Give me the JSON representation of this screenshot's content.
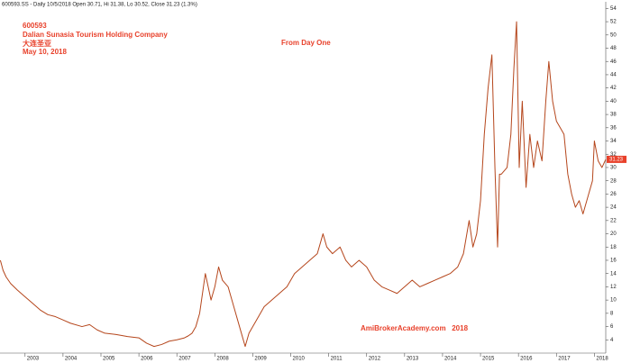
{
  "chart_data": {
    "type": "line",
    "title": "600593.SS - Daily 10/5/2018 Open 30.71, Hi 31.38, Lo 30.52, Close 31.23 (1.3%)",
    "annotations": [
      "600593",
      "Dalian Sunasia Tourism Holding Company",
      "大连圣亚",
      "May 10, 2018",
      "From Day One",
      "AmiBrokerAcademy.com   2018"
    ],
    "color": "#b5461c",
    "x": [
      2002.35,
      2002.42,
      2002.5,
      2002.62,
      2002.8,
      2003.0,
      2003.2,
      2003.4,
      2003.6,
      2003.8,
      2004.0,
      2004.2,
      2004.5,
      2004.7,
      2004.9,
      2005.1,
      2005.4,
      2005.7,
      2006.0,
      2006.2,
      2006.4,
      2006.6,
      2006.8,
      2007.0,
      2007.2,
      2007.3,
      2007.4,
      2007.5,
      2007.6,
      2007.75,
      2007.9,
      2008.0,
      2008.1,
      2008.2,
      2008.35,
      2008.5,
      2008.65,
      2008.8,
      2008.9,
      2009.1,
      2009.3,
      2009.5,
      2009.7,
      2009.9,
      2010.1,
      2010.3,
      2010.5,
      2010.7,
      2010.85,
      2010.95,
      2011.1,
      2011.3,
      2011.45,
      2011.6,
      2011.8,
      2012.0,
      2012.2,
      2012.4,
      2012.6,
      2012.8,
      2013.0,
      2013.2,
      2013.4,
      2013.6,
      2013.8,
      2014.0,
      2014.2,
      2014.4,
      2014.55,
      2014.7,
      2014.8,
      2014.9,
      2015.0,
      2015.1,
      2015.2,
      2015.3,
      2015.38,
      2015.45,
      2015.5,
      2015.55,
      2015.7,
      2015.8,
      2015.88,
      2015.95,
      2016.02,
      2016.1,
      2016.2,
      2016.3,
      2016.4,
      2016.5,
      2016.62,
      2016.72,
      2016.8,
      2016.9,
      2017.0,
      2017.1,
      2017.2,
      2017.3,
      2017.4,
      2017.5,
      2017.6,
      2017.7,
      2017.85,
      2017.95,
      2018.0,
      2018.1,
      2018.2,
      2018.3
    ],
    "values": [
      16,
      14.5,
      13.5,
      12.5,
      11.5,
      10.5,
      9.5,
      8.5,
      7.8,
      7.5,
      7,
      6.5,
      6,
      6.3,
      5.5,
      5,
      4.8,
      4.5,
      4.3,
      3.5,
      3,
      3.3,
      3.8,
      4,
      4.3,
      4.6,
      5,
      6,
      8,
      14,
      10,
      12,
      15,
      13,
      12,
      9,
      6,
      3,
      5,
      7,
      9,
      10,
      11,
      12,
      14,
      15,
      16,
      17,
      20,
      18,
      17,
      18,
      16,
      15,
      16,
      15,
      13,
      12,
      11.5,
      11,
      12,
      13,
      12,
      12.5,
      13,
      13.5,
      14,
      15,
      17,
      22,
      18,
      20,
      25,
      35,
      42,
      47,
      30,
      18,
      29,
      29,
      30,
      35,
      45,
      52,
      30,
      40,
      27,
      35,
      30,
      34,
      31,
      40,
      46,
      40,
      37,
      36,
      35,
      29,
      26,
      24,
      25,
      23,
      26,
      28,
      34,
      31,
      30,
      31.23
    ],
    "xlim": [
      2002.34,
      2018.3
    ],
    "xticks": [
      2003,
      2004,
      2005,
      2006,
      2007,
      2008,
      2009,
      2010,
      2011,
      2012,
      2013,
      2014,
      2015,
      2016,
      2017,
      2018
    ],
    "ylim": [
      2,
      55
    ],
    "yticks": [
      4,
      6,
      8,
      10,
      12,
      14,
      16,
      18,
      20,
      22,
      24,
      26,
      28,
      30,
      32,
      34,
      36,
      38,
      40,
      42,
      44,
      46,
      48,
      50,
      52,
      54
    ]
  }
}
